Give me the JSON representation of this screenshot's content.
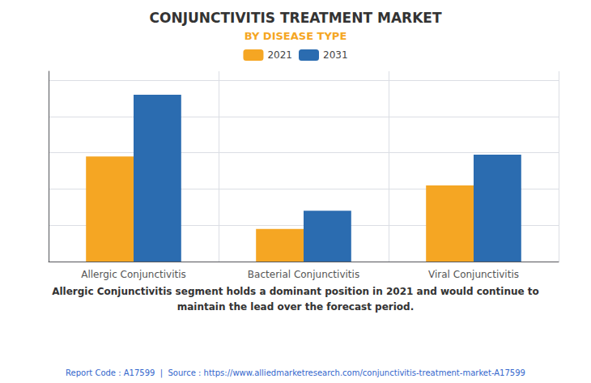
{
  "chart_data": {
    "type": "bar",
    "title": "CONJUNCTIVITIS TREATMENT MARKET",
    "subtitle": "BY DISEASE TYPE",
    "categories": [
      "Allergic Conjunctivitis",
      "Bacterial Conjunctivitis",
      "Viral Conjunctivitis"
    ],
    "series": [
      {
        "name": "2021",
        "color": "#F5A623",
        "values": [
          5.8,
          1.8,
          4.2
        ]
      },
      {
        "name": "2031",
        "color": "#2B6CB0",
        "values": [
          9.2,
          2.8,
          5.9
        ]
      }
    ],
    "ylim": [
      0,
      10.5
    ],
    "yticks": [
      0,
      2,
      4,
      6,
      8,
      10
    ],
    "grid": true,
    "legend": "top",
    "tick_labels": "x",
    "annotations": [
      "Allergic Conjunctivitis segment holds a dominant position in 2021 and would continue to\nmaintain the lead over the forecast period.",
      "Report Code : A17599  |  Source : https://www.alliedmarketresearch.com/conjunctivitis-treatment-market-A17599"
    ]
  }
}
